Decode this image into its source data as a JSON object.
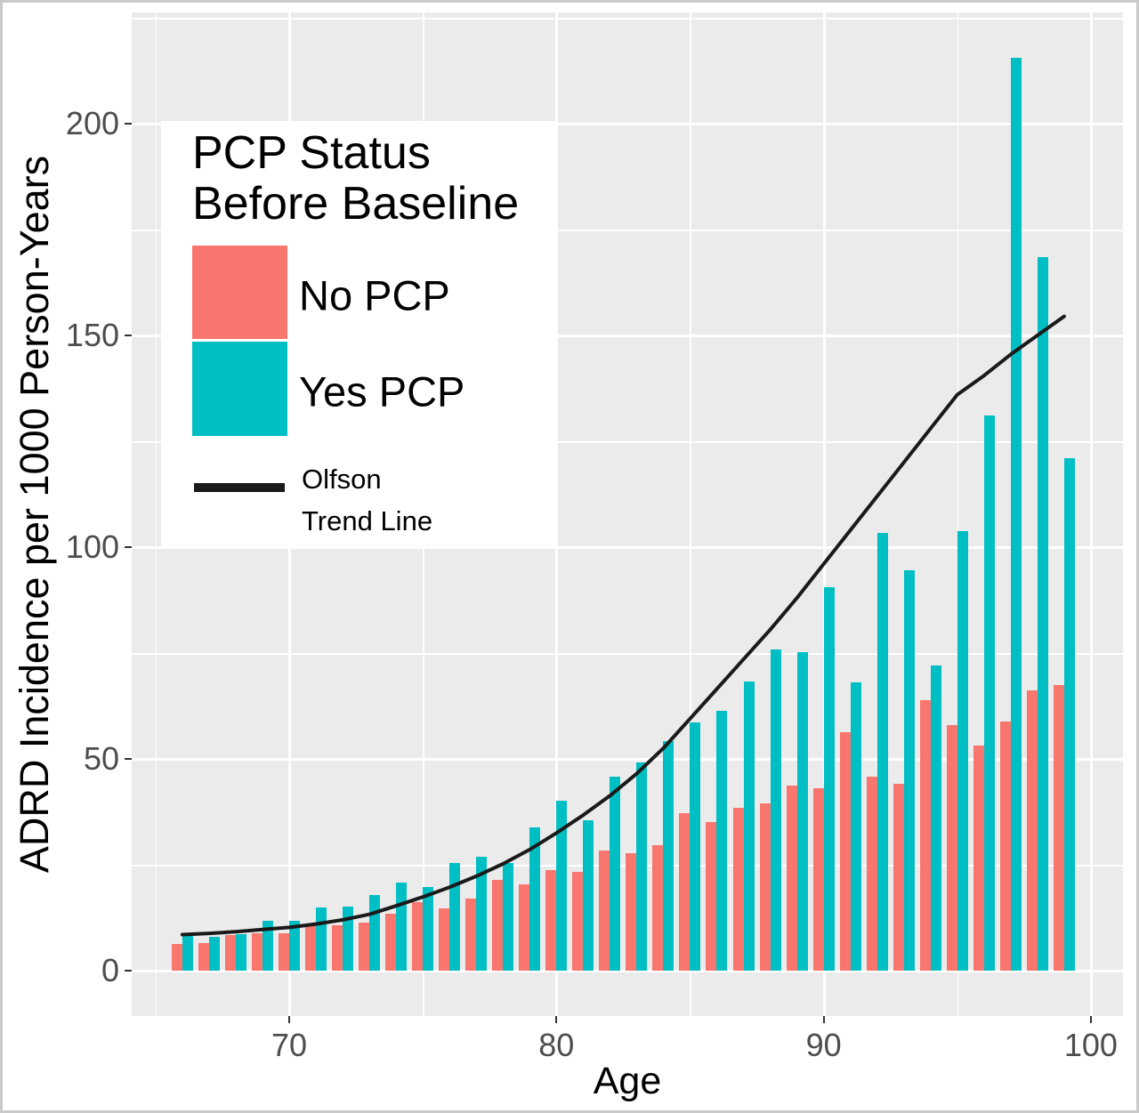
{
  "figure": {
    "x_axis_title": "Age",
    "y_axis_title": "ADRD Incidence per 1000 Person-Years"
  },
  "legend": {
    "title_line1": "PCP Status",
    "title_line2": "Before Baseline",
    "item_no_pcp": "No PCP",
    "item_yes_pcp": "Yes PCP",
    "line_label_line1": "Olfson",
    "line_label_line2": "Trend Line"
  },
  "colors": {
    "no_pcp": "#F8766D",
    "yes_pcp": "#00BFC4",
    "trend_line": "#1a1a1a"
  },
  "chart_data": {
    "type": "bar",
    "title": "",
    "xlabel": "Age",
    "ylabel": "ADRD Incidence per 1000 Person-Years",
    "x_ticks": [
      70,
      80,
      90,
      100
    ],
    "y_ticks": [
      0,
      50,
      100,
      150,
      200
    ],
    "x_minor_ticks": [
      65,
      75,
      85,
      95
    ],
    "y_minor_ticks": [
      25,
      75,
      125,
      175,
      225
    ],
    "xlim": [
      64.1,
      101.2
    ],
    "ylim": [
      -10.8,
      226.3
    ],
    "grid": "on",
    "legend_position": "top-left-inside",
    "categories": [
      66,
      67,
      68,
      69,
      70,
      71,
      72,
      73,
      74,
      75,
      76,
      77,
      78,
      79,
      80,
      81,
      82,
      83,
      84,
      85,
      86,
      87,
      88,
      89,
      90,
      91,
      92,
      93,
      94,
      95,
      96,
      97,
      98,
      99
    ],
    "series": [
      {
        "name": "No PCP",
        "type": "bar",
        "values": [
          6.4,
          6.6,
          8.5,
          8.8,
          8.8,
          10.8,
          10.8,
          11.3,
          13.4,
          16.1,
          14.7,
          17.1,
          21.5,
          20.4,
          23.8,
          23.4,
          28.4,
          27.8,
          29.7,
          37.2,
          35.0,
          38.4,
          39.5,
          43.6,
          43.1,
          56.3,
          45.9,
          44.1,
          63.8,
          57.9,
          53.2,
          58.9,
          66.1,
          67.5
        ]
      },
      {
        "name": "Yes PCP",
        "type": "bar",
        "values": [
          8.7,
          7.9,
          8.7,
          11.8,
          11.8,
          15.0,
          15.2,
          17.9,
          20.9,
          19.8,
          25.5,
          26.9,
          25.5,
          33.8,
          40.1,
          35.5,
          45.7,
          49.1,
          54.2,
          58.6,
          61.3,
          68.3,
          75.9,
          75.3,
          90.5,
          68.1,
          103.4,
          94.5,
          72.1,
          103.7,
          131.0,
          215.5,
          168.5,
          121.0
        ]
      },
      {
        "name": "Olfson Trend Line",
        "type": "line",
        "values": [
          8.5,
          8.8,
          9.2,
          9.7,
          10.2,
          11.0,
          12.0,
          13.3,
          15.3,
          17.4,
          19.7,
          22.3,
          25.2,
          28.6,
          32.5,
          36.7,
          41.3,
          46.5,
          52.5,
          59.5,
          66.5,
          73.5,
          80.5,
          88,
          96,
          104,
          112,
          120,
          128,
          136,
          140.5,
          145.5,
          150,
          154.5
        ]
      }
    ]
  }
}
